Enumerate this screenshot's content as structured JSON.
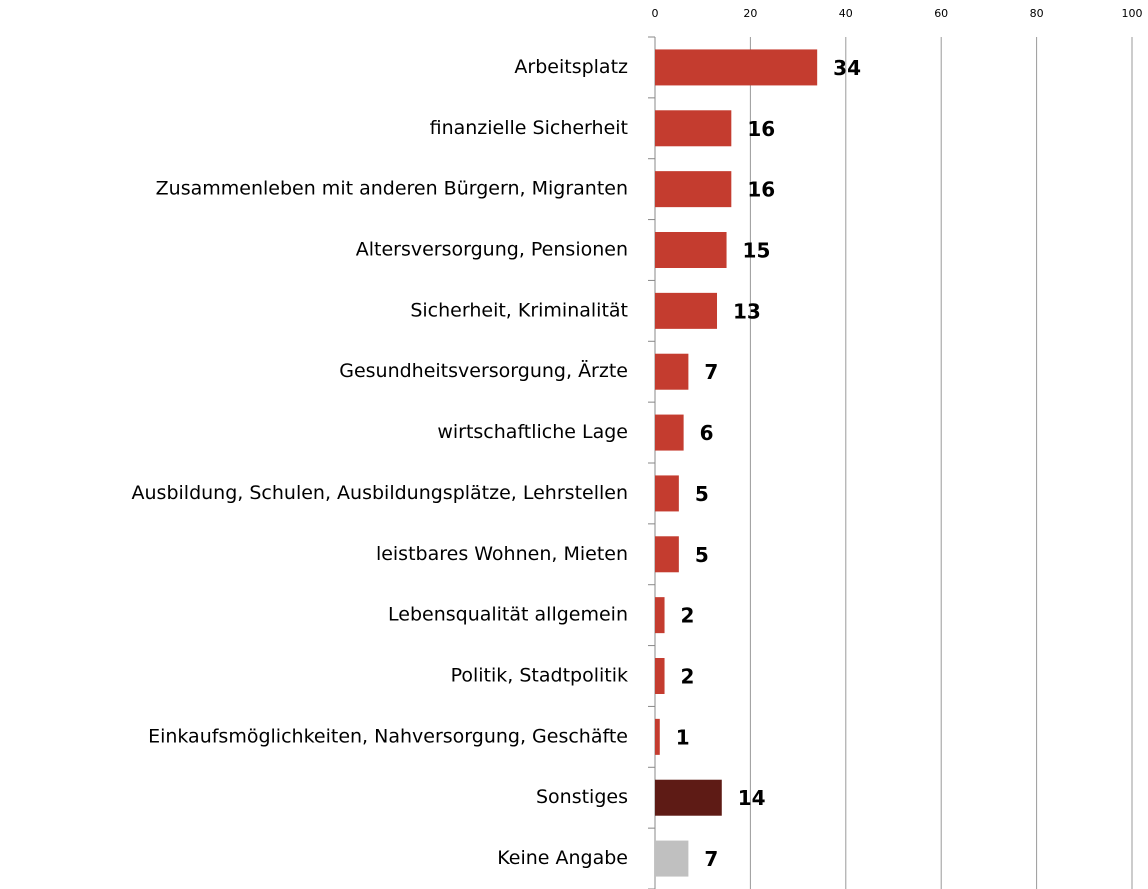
{
  "chart_data": {
    "type": "bar",
    "orientation": "horizontal",
    "categories": [
      "Arbeitsplatz",
      "finanzielle Sicherheit",
      "Zusammenleben mit anderen Bürgern, Migranten",
      "Altersversorgung, Pensionen",
      "Sicherheit, Kriminalität",
      "Gesundheitsversorgung, Ärzte",
      "wirtschaftliche Lage",
      "Ausbildung, Schulen, Ausbildungsplätze, Lehrstellen",
      "leistbares Wohnen, Mieten",
      "Lebensqualität allgemein",
      "Politik, Stadtpolitik",
      "Einkaufsmöglichkeiten, Nahversorgung, Geschäfte",
      "Sonstiges",
      "Keine Angabe"
    ],
    "values": [
      34,
      16,
      16,
      15,
      13,
      7,
      6,
      5,
      5,
      2,
      2,
      1,
      14,
      7
    ],
    "colors": [
      "#c43c2f",
      "#c43c2f",
      "#c43c2f",
      "#c43c2f",
      "#c43c2f",
      "#c43c2f",
      "#c43c2f",
      "#c43c2f",
      "#c43c2f",
      "#c43c2f",
      "#c43c2f",
      "#c43c2f",
      "#5e1b15",
      "#c0c0c0"
    ],
    "xlim": [
      0,
      100
    ],
    "xticks": [
      0,
      20,
      40,
      60,
      80,
      100
    ],
    "grid": true
  }
}
